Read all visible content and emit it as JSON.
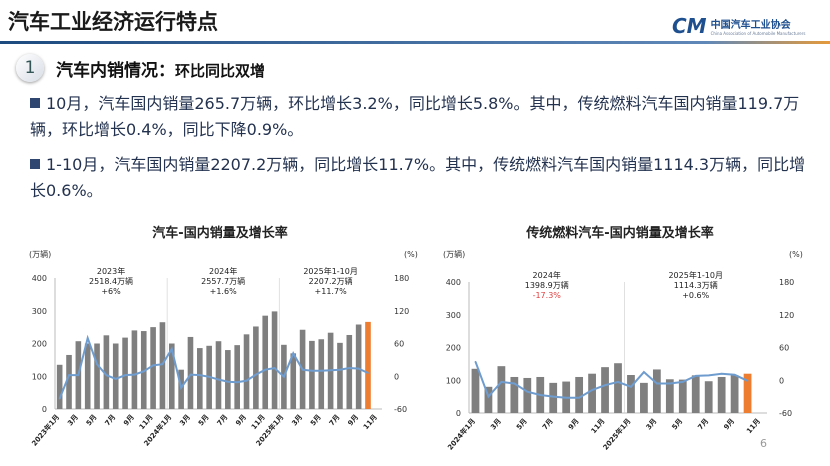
{
  "header": {
    "title": "汽车工业经济运行特点",
    "logo_mark": "CM",
    "logo_text": "中国汽车工业协会",
    "logo_sub": "China Association of Automobile Manufacturers"
  },
  "section": {
    "number": "1",
    "title": "汽车内销情况：",
    "subtitle": "环比同比双增"
  },
  "bullets": [
    "10月，汽车国内销量265.7万辆，环比增长3.2%，同比增长5.8%。其中，传统燃料汽车国内销量119.7万辆，环比增长0.4%，同比下降0.9%。",
    "1-10月，汽车国内销量2207.2万辆，同比增长11.7%。其中，传统燃料汽车国内销量1114.3万辆，同比增长0.6%。"
  ],
  "page_number": "6",
  "colors": {
    "bar": "#7f7f7f",
    "bar_highlight": "#ed7d31",
    "line": "#6f9ccf",
    "negative": "#e04040",
    "accent": "#1d4a7f"
  },
  "chart_data": [
    {
      "type": "bar",
      "title": "汽车-国内销量及增长率",
      "ylabel": "(万辆)",
      "y2label": "(%)",
      "ylim": [
        0,
        400
      ],
      "y2lim": [
        -60,
        180
      ],
      "yticks": [
        0,
        100,
        200,
        300,
        400
      ],
      "y2ticks": [
        -60,
        0,
        60,
        120,
        180
      ],
      "xticklabels": [
        "2023年1月",
        "3月",
        "5月",
        "7月",
        "9月",
        "11月",
        "2024年1月",
        "3月",
        "5月",
        "7月",
        "9月",
        "11月",
        "2025年1月",
        "3月",
        "5月",
        "7月",
        "9月",
        "11月"
      ],
      "categories": [
        "2023-01",
        "2023-02",
        "2023-03",
        "2023-04",
        "2023-05",
        "2023-06",
        "2023-07",
        "2023-08",
        "2023-09",
        "2023-10",
        "2023-11",
        "2023-12",
        "2024-01",
        "2024-02",
        "2024-03",
        "2024-04",
        "2024-05",
        "2024-06",
        "2024-07",
        "2024-08",
        "2024-09",
        "2024-10",
        "2024-11",
        "2024-12",
        "2025-01",
        "2025-02",
        "2025-03",
        "2025-04",
        "2025-05",
        "2025-06",
        "2025-07",
        "2025-08",
        "2025-09",
        "2025-10",
        "2025-11"
      ],
      "series": [
        {
          "type": "bar",
          "axis": "left",
          "values": [
            135,
            165,
            207,
            200,
            200,
            225,
            200,
            218,
            240,
            238,
            250,
            265,
            200,
            120,
            220,
            186,
            193,
            207,
            180,
            195,
            228,
            252,
            285,
            298,
            196,
            170,
            242,
            208,
            213,
            233,
            202,
            226,
            258,
            266,
            null
          ]
        },
        {
          "type": "line",
          "axis": "right",
          "values": [
            -41,
            2,
            2,
            70,
            22,
            2,
            -5,
            2,
            3,
            9,
            20,
            22,
            50,
            -21,
            3,
            2,
            -1,
            -6,
            -10,
            -11,
            -8,
            3,
            12,
            15,
            -1,
            42,
            12,
            10,
            10,
            11,
            12,
            15,
            14,
            6,
            null
          ]
        }
      ],
      "annotations": [
        {
          "year": "2023年",
          "total": "2518.4万辆",
          "growth": "+6%"
        },
        {
          "year": "2024年",
          "total": "2557.7万辆",
          "growth": "+1.6%"
        },
        {
          "year": "2025年1-10月",
          "total": "2207.2万辆",
          "growth": "+11.7%"
        }
      ]
    },
    {
      "type": "bar",
      "title": "传统燃料汽车-国内销量及增长率",
      "ylabel": "(万辆)",
      "y2label": "(%)",
      "ylim": [
        0,
        400
      ],
      "y2lim": [
        -60,
        180
      ],
      "yticks": [
        0,
        100,
        200,
        300,
        400
      ],
      "y2ticks": [
        -60,
        0,
        60,
        120,
        180
      ],
      "xticklabels": [
        "2024年1月",
        "3月",
        "5月",
        "7月",
        "9月",
        "11月",
        "2025年1月",
        "3月",
        "5月",
        "7月",
        "9月",
        "11月"
      ],
      "categories": [
        "2024-01",
        "2024-02",
        "2024-03",
        "2024-04",
        "2024-05",
        "2024-06",
        "2024-07",
        "2024-08",
        "2024-09",
        "2024-10",
        "2024-11",
        "2024-12",
        "2025-01",
        "2025-02",
        "2025-03",
        "2025-04",
        "2025-05",
        "2025-06",
        "2025-07",
        "2025-08",
        "2025-09",
        "2025-10",
        "2025-11"
      ],
      "series": [
        {
          "type": "bar",
          "axis": "left",
          "values": [
            135,
            80,
            143,
            110,
            107,
            110,
            92,
            96,
            110,
            120,
            140,
            152,
            116,
            92,
            133,
            103,
            102,
            115,
            97,
            110,
            115,
            120,
            null
          ]
        },
        {
          "type": "line",
          "axis": "right",
          "values": [
            34,
            -30,
            -3,
            -6,
            -21,
            -27,
            -30,
            -32,
            -32,
            -18,
            -9,
            -3,
            -12,
            15,
            -6,
            -6,
            -3,
            8,
            9,
            12,
            10,
            -1,
            null
          ]
        }
      ],
      "annotations": [
        {
          "year": "2024年",
          "total": "1398.9万辆",
          "growth": "-17.3%"
        },
        {
          "year": "2025年1-10月",
          "total": "1114.3万辆",
          "growth": "+0.6%"
        }
      ]
    }
  ]
}
